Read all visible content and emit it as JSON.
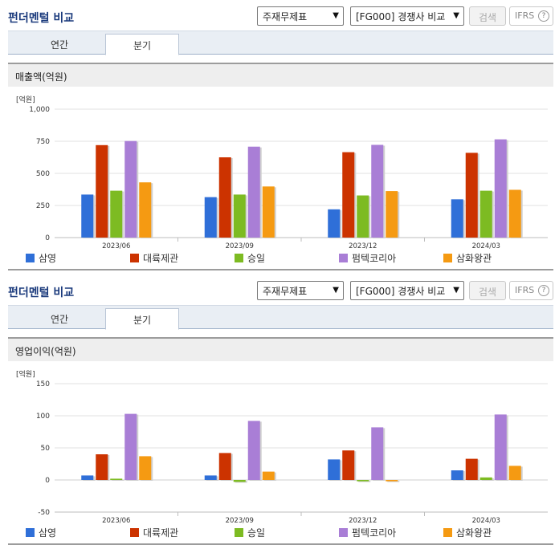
{
  "panels": [
    {
      "title": "펀더멘털 비교",
      "select_statement": "주재무제표",
      "select_compare": "[FG000] 경쟁사 비교",
      "search_label": "검색",
      "ifrs_label": "IFRS",
      "help_glyph": "?",
      "tabs": [
        {
          "label": "연간",
          "active": false
        },
        {
          "label": "분기",
          "active": true
        }
      ],
      "chart_title": "매출액(억원)",
      "unit_label": "[억원]"
    },
    {
      "title": "펀더멘털 비교",
      "select_statement": "주재무제표",
      "select_compare": "[FG000] 경쟁사 비교",
      "search_label": "검색",
      "ifrs_label": "IFRS",
      "help_glyph": "?",
      "tabs": [
        {
          "label": "연간",
          "active": false
        },
        {
          "label": "분기",
          "active": true
        }
      ],
      "chart_title": "영업이익(억원)",
      "unit_label": "[억원]"
    }
  ],
  "chart_data": [
    {
      "type": "bar",
      "title": "매출액(억원)",
      "ylabel": "[억원]",
      "ylim": [
        0,
        1000
      ],
      "yticks": [
        0,
        250,
        500,
        750,
        1000
      ],
      "ytick_labels": [
        "0",
        "250",
        "500",
        "750",
        "1,000"
      ],
      "categories": [
        "2023/06",
        "2023/09",
        "2023/12",
        "2024/03"
      ],
      "series": [
        {
          "name": "삼영",
          "color": "#2f6fd8",
          "values": [
            335,
            315,
            220,
            298
          ]
        },
        {
          "name": "대륙제관",
          "color": "#cc3300",
          "values": [
            720,
            625,
            665,
            660
          ]
        },
        {
          "name": "승일",
          "color": "#7dbb22",
          "values": [
            365,
            335,
            328,
            365
          ]
        },
        {
          "name": "펌텍코리아",
          "color": "#a97ed6",
          "values": [
            752,
            708,
            722,
            765
          ]
        },
        {
          "name": "삼화왕관",
          "color": "#f59a12",
          "values": [
            430,
            398,
            362,
            372
          ]
        }
      ],
      "grid": true,
      "legend": "bottom"
    },
    {
      "type": "bar",
      "title": "영업이익(억원)",
      "ylabel": "[억원]",
      "ylim": [
        -50,
        150
      ],
      "yticks": [
        -50,
        0,
        50,
        100,
        150
      ],
      "ytick_labels": [
        "-50",
        "0",
        "50",
        "100",
        "150"
      ],
      "categories": [
        "2023/06",
        "2023/09",
        "2023/12",
        "2024/03"
      ],
      "series": [
        {
          "name": "삼영",
          "color": "#2f6fd8",
          "values": [
            7,
            7,
            32,
            15
          ]
        },
        {
          "name": "대륙제관",
          "color": "#cc3300",
          "values": [
            40,
            42,
            46,
            33
          ]
        },
        {
          "name": "승일",
          "color": "#7dbb22",
          "values": [
            2,
            -3,
            -2,
            4
          ]
        },
        {
          "name": "펌텍코리아",
          "color": "#a97ed6",
          "values": [
            103,
            92,
            82,
            102
          ]
        },
        {
          "name": "삼화왕관",
          "color": "#f59a12",
          "values": [
            37,
            13,
            -2,
            22
          ]
        }
      ],
      "grid": true,
      "legend": "bottom"
    }
  ]
}
